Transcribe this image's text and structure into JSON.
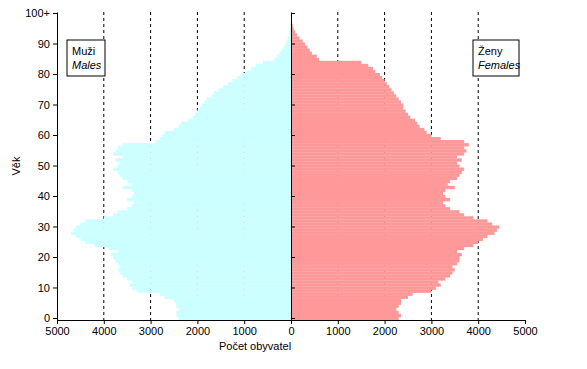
{
  "chart_data": [
    {
      "type": "bar",
      "orientation": "horizontal",
      "title": "Muži",
      "subtitle": "Males",
      "xlabel": "Počet obyvatel",
      "ylabel": "Věk",
      "categories": [
        "0",
        null,
        null,
        null,
        null,
        null,
        null,
        null,
        null,
        null,
        "10",
        null,
        null,
        null,
        null,
        null,
        null,
        null,
        null,
        null,
        "20",
        null,
        null,
        null,
        null,
        null,
        null,
        null,
        null,
        null,
        "30",
        null,
        null,
        null,
        null,
        null,
        null,
        null,
        null,
        null,
        "40",
        null,
        null,
        null,
        null,
        null,
        null,
        null,
        null,
        null,
        "50",
        null,
        null,
        null,
        null,
        null,
        null,
        null,
        null,
        null,
        "60",
        null,
        null,
        null,
        null,
        null,
        null,
        null,
        null,
        null,
        "70",
        null,
        null,
        null,
        null,
        null,
        null,
        null,
        null,
        null,
        "80",
        null,
        null,
        null,
        null,
        null,
        null,
        null,
        null,
        null,
        "90",
        null,
        null,
        null,
        null,
        null,
        null,
        null,
        null,
        null,
        "100+"
      ],
      "values": [
        2400,
        2450,
        2450,
        2400,
        2450,
        2450,
        2500,
        2700,
        2800,
        3300,
        3400,
        3450,
        3400,
        3500,
        3600,
        3650,
        3700,
        3650,
        3700,
        3750,
        3800,
        3850,
        3700,
        3900,
        4200,
        4400,
        4500,
        4600,
        4700,
        4650,
        4600,
        4500,
        4400,
        4000,
        3800,
        3700,
        3500,
        3400,
        3350,
        3500,
        3400,
        3350,
        3400,
        3600,
        3400,
        3500,
        3600,
        3650,
        3700,
        3800,
        3700,
        3650,
        3750,
        3600,
        3800,
        3750,
        3700,
        3600,
        2900,
        2800,
        2750,
        2700,
        2500,
        2400,
        2350,
        2200,
        2100,
        2050,
        2000,
        1950,
        1900,
        1850,
        1800,
        1700,
        1650,
        1550,
        1450,
        1350,
        1250,
        1150,
        1050,
        950,
        850,
        750,
        600,
        350,
        300,
        250,
        200,
        150,
        120,
        90,
        70,
        50,
        35,
        25,
        15,
        10,
        6,
        4,
        5
      ],
      "color": "#ccffff",
      "xlim": [
        5000,
        0
      ],
      "xticks": [
        5000,
        4000,
        3000,
        2000,
        1000,
        0
      ],
      "grid": true
    },
    {
      "type": "bar",
      "orientation": "horizontal",
      "title": "Ženy",
      "subtitle": "Females",
      "categories": [
        "0",
        null,
        null,
        null,
        null,
        null,
        null,
        null,
        null,
        null,
        "10",
        null,
        null,
        null,
        null,
        null,
        null,
        null,
        null,
        null,
        "20",
        null,
        null,
        null,
        null,
        null,
        null,
        null,
        null,
        null,
        "30",
        null,
        null,
        null,
        null,
        null,
        null,
        null,
        null,
        null,
        "40",
        null,
        null,
        null,
        null,
        null,
        null,
        null,
        null,
        null,
        "50",
        null,
        null,
        null,
        null,
        null,
        null,
        null,
        null,
        null,
        "60",
        null,
        null,
        null,
        null,
        null,
        null,
        null,
        null,
        null,
        "70",
        null,
        null,
        null,
        null,
        null,
        null,
        null,
        null,
        null,
        "80",
        null,
        null,
        null,
        null,
        null,
        null,
        null,
        null,
        null,
        "90",
        null,
        null,
        null,
        null,
        null,
        null,
        null,
        null,
        null,
        "100+"
      ],
      "values": [
        2300,
        2350,
        2300,
        2250,
        2300,
        2350,
        2350,
        2500,
        2600,
        3000,
        3100,
        3200,
        3150,
        3300,
        3400,
        3450,
        3500,
        3450,
        3550,
        3600,
        3600,
        3650,
        3550,
        3700,
        3900,
        4000,
        4100,
        4200,
        4350,
        4400,
        4450,
        4300,
        4200,
        3900,
        3700,
        3600,
        3400,
        3300,
        3250,
        3400,
        3300,
        3250,
        3300,
        3500,
        3350,
        3400,
        3550,
        3600,
        3650,
        3700,
        3600,
        3550,
        3650,
        3550,
        3700,
        3750,
        3700,
        3800,
        3700,
        3200,
        3000,
        2900,
        2850,
        2750,
        2700,
        2650,
        2550,
        2500,
        2450,
        2400,
        2400,
        2350,
        2300,
        2250,
        2200,
        2150,
        2100,
        2050,
        2000,
        1950,
        1900,
        1800,
        1750,
        1650,
        1500,
        600,
        550,
        450,
        400,
        350,
        300,
        250,
        180,
        130,
        90,
        60,
        40,
        25,
        15,
        10,
        10
      ],
      "color": "#ff9999",
      "xlim": [
        0,
        5000
      ],
      "xticks": [
        1000,
        2000,
        3000,
        4000,
        5000
      ],
      "grid": true,
      "tick_labels": "x"
    }
  ]
}
